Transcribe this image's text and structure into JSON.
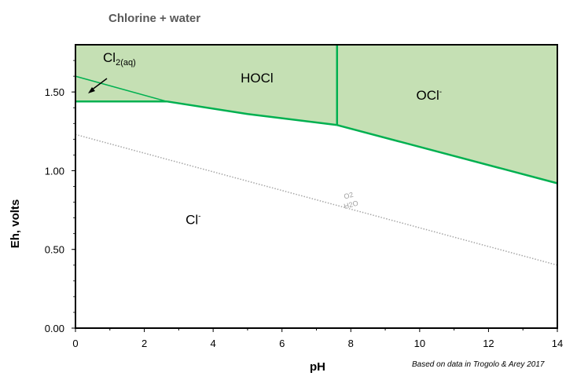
{
  "chart_data": {
    "type": "area",
    "title": "Chlorine + water",
    "xlabel": "pH",
    "ylabel": "Eh, volts",
    "xlim": [
      0,
      14
    ],
    "ylim": [
      0,
      1.8
    ],
    "x_ticks": [
      0,
      2,
      4,
      6,
      8,
      10,
      12,
      14
    ],
    "x_tick_labels": [
      "0",
      "2",
      "4",
      "6",
      "8",
      "10",
      "12",
      "14"
    ],
    "y_ticks": [
      0,
      0.5,
      1.0,
      1.5
    ],
    "y_tick_labels": [
      "0.00",
      "0.50",
      "1.00",
      "1.50"
    ],
    "grid": false,
    "fill_color": "#c5e0b4",
    "boundary_color": "#00b050",
    "water_line_color": "#a6a6a6",
    "boundaries": {
      "cl2_hocl": {
        "x": [
          0,
          2.65
        ],
        "y": [
          1.6,
          1.44
        ]
      },
      "cl2_cl": {
        "x": [
          0,
          2.65
        ],
        "y": [
          1.44,
          1.44
        ]
      },
      "hocl_cl": {
        "x": [
          2.65,
          5.0,
          7.6
        ],
        "y": [
          1.44,
          1.36,
          1.29
        ]
      },
      "hocl_ocl": {
        "x": [
          7.6,
          7.6
        ],
        "y": [
          1.29,
          1.8
        ]
      },
      "ocl_cl": {
        "x": [
          7.6,
          14
        ],
        "y": [
          1.29,
          0.92
        ]
      }
    },
    "water_line": {
      "x": [
        0,
        14
      ],
      "y": [
        1.23,
        0.4
      ]
    },
    "regions": {
      "cl2": {
        "main": "Cl",
        "sub": "2(aq)",
        "x": 0.8,
        "y": 1.69
      },
      "hocl": {
        "label": "HOCl",
        "x": 4.8,
        "y": 1.56
      },
      "ocl": {
        "main": "OCl",
        "sup": "-",
        "x": 9.9,
        "y": 1.45
      },
      "cl": {
        "main": "Cl",
        "sup": "-",
        "x": 3.2,
        "y": 0.66
      }
    },
    "water_labels": {
      "upper": "O2",
      "lower": "H2O",
      "x": 7.75,
      "y": 0.8
    },
    "credit": "Based on data in Trogolo & Arey 2017"
  }
}
